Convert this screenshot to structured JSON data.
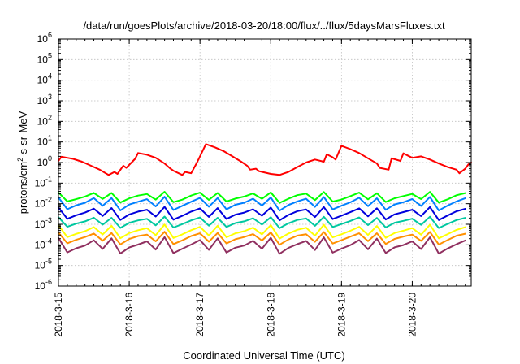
{
  "chart_data": {
    "type": "line",
    "title": "/data/run/goesPlots/archive/2018-03-20/18:00/flux/../flux/5daysMarsFluxes.txt",
    "xlabel": "Coordinated Universal Time (UTC)",
    "ylabel": {
      "prefix": "protons/cm",
      "sup": "2",
      "suffix": "-s-sr-MeV"
    },
    "y_scale": "log",
    "ylim": [
      1e-06,
      1000000.0
    ],
    "y_ticks": [
      {
        "value": 1e-06,
        "base": "10",
        "exp": "-6"
      },
      {
        "value": 1e-05,
        "base": "10",
        "exp": "-5"
      },
      {
        "value": 0.0001,
        "base": "10",
        "exp": "-4"
      },
      {
        "value": 0.001,
        "base": "10",
        "exp": "-3"
      },
      {
        "value": 0.01,
        "base": "10",
        "exp": "-2"
      },
      {
        "value": 0.1,
        "base": "10",
        "exp": "-1"
      },
      {
        "value": 1,
        "base": "10",
        "exp": "0"
      },
      {
        "value": 10,
        "base": "10",
        "exp": "1"
      },
      {
        "value": 100,
        "base": "10",
        "exp": "2"
      },
      {
        "value": 1000,
        "base": "10",
        "exp": "3"
      },
      {
        "value": 10000,
        "base": "10",
        "exp": "4"
      },
      {
        "value": 100000,
        "base": "10",
        "exp": "5"
      },
      {
        "value": 1000000,
        "base": "10",
        "exp": "6"
      }
    ],
    "xlim": [
      "2018-03-15T00:00",
      "2018-03-20T20:00"
    ],
    "x_ticks": [
      {
        "date": "2018-03-15T00:00",
        "label": "2018-3-15"
      },
      {
        "date": "2018-03-16T00:00",
        "label": "2018-3-16"
      },
      {
        "date": "2018-03-17T00:00",
        "label": "2018-3-17"
      },
      {
        "date": "2018-03-18T00:00",
        "label": "2018-3-18"
      },
      {
        "date": "2018-03-19T00:00",
        "label": "2018-3-19"
      },
      {
        "date": "2018-03-20T00:00",
        "label": "2018-3-20"
      }
    ],
    "grid": true,
    "legend": "none",
    "series": [
      {
        "color": "#ff0000",
        "x": [
          "2018-03-15T00:00",
          "2018-03-15T01:00",
          "2018-03-15T03:00",
          "2018-03-15T05:00",
          "2018-03-15T08:00",
          "2018-03-15T11:00",
          "2018-03-15T14:00",
          "2018-03-15T16:00",
          "2018-03-15T17:00",
          "2018-03-15T19:00",
          "2018-03-15T20:00",
          "2018-03-15T22:00",
          "2018-03-15T23:00",
          "2018-03-16T02:00",
          "2018-03-16T03:00",
          "2018-03-16T06:00",
          "2018-03-16T09:00",
          "2018-03-16T12:00",
          "2018-03-16T14:00",
          "2018-03-16T15:00",
          "2018-03-16T18:00",
          "2018-03-16T19:00",
          "2018-03-16T21:00",
          "2018-03-16T23:00",
          "2018-03-17T02:00",
          "2018-03-17T05:00",
          "2018-03-17T08:00",
          "2018-03-17T11:00",
          "2018-03-17T14:00",
          "2018-03-17T16:00",
          "2018-03-17T17:00",
          "2018-03-17T19:00",
          "2018-03-17T20:00",
          "2018-03-18T00:00",
          "2018-03-18T03:00",
          "2018-03-18T06:00",
          "2018-03-18T09:00",
          "2018-03-18T12:00",
          "2018-03-18T15:00",
          "2018-03-18T18:00",
          "2018-03-18T19:00",
          "2018-03-18T21:00",
          "2018-03-18T22:00",
          "2018-03-19T00:00",
          "2018-03-19T03:00",
          "2018-03-19T06:00",
          "2018-03-19T09:00",
          "2018-03-19T12:00",
          "2018-03-19T13:00",
          "2018-03-19T16:00",
          "2018-03-19T17:00",
          "2018-03-19T20:00",
          "2018-03-19T21:00",
          "2018-03-20T00:00",
          "2018-03-20T03:00",
          "2018-03-20T06:00",
          "2018-03-20T09:00",
          "2018-03-20T12:00",
          "2018-03-20T15:00",
          "2018-03-20T16:00",
          "2018-03-20T18:00",
          "2018-03-20T19:00",
          "2018-03-20T20:00"
        ],
        "y": [
          1.2,
          1.9,
          1.7,
          1.5,
          1.1,
          0.7,
          0.45,
          0.3,
          0.25,
          0.35,
          0.28,
          0.7,
          0.55,
          1.5,
          2.9,
          2.4,
          1.7,
          0.9,
          0.5,
          0.4,
          0.25,
          0.35,
          0.3,
          1.0,
          7.8,
          5.5,
          3.6,
          2.0,
          1.1,
          0.7,
          0.45,
          0.5,
          0.38,
          0.28,
          0.25,
          0.35,
          0.6,
          1.0,
          1.4,
          1.1,
          2.5,
          1.8,
          1.4,
          6.5,
          4.5,
          2.9,
          1.6,
          0.9,
          0.55,
          0.45,
          1.6,
          1.2,
          2.8,
          1.7,
          2.0,
          1.4,
          0.9,
          0.6,
          0.45,
          0.3,
          0.5,
          0.8,
          1.0
        ]
      },
      {
        "color": "#00ff00",
        "start": "2018-03-15T00:00",
        "step_hours": 3,
        "cycle": [
          0.035,
          0.012,
          0.017,
          0.024,
          0.032,
          0.016
        ],
        "count": 47
      },
      {
        "color": "#0080ff",
        "start": "2018-03-15T00:00",
        "step_hours": 3,
        "cycle": [
          0.02,
          0.005,
          0.0085,
          0.012,
          0.018,
          0.0075
        ],
        "count": 47
      },
      {
        "color": "#0000dd",
        "start": "2018-03-15T00:00",
        "step_hours": 3,
        "cycle": [
          0.0065,
          0.0017,
          0.0028,
          0.004,
          0.0055,
          0.0024
        ],
        "count": 47
      },
      {
        "color": "#00c8a0",
        "start": "2018-03-15T00:00",
        "step_hours": 3,
        "cycle": [
          0.0022,
          0.0007,
          0.0011,
          0.0015,
          0.002,
          0.0009
        ],
        "count": 47
      },
      {
        "color": "#ffff00",
        "start": "2018-03-15T00:00",
        "step_hours": 3,
        "cycle": [
          0.0009,
          0.00022,
          0.00035,
          0.0005,
          0.0007,
          0.0003
        ],
        "count": 47
      },
      {
        "color": "#ff9000",
        "start": "2018-03-15T00:00",
        "step_hours": 3,
        "cycle": [
          0.0004,
          0.00011,
          0.00018,
          0.00026,
          0.00034,
          0.00015
        ],
        "count": 47
      },
      {
        "color": "#903060",
        "start": "2018-03-15T00:00",
        "step_hours": 3,
        "cycle": [
          0.00022,
          4e-05,
          7e-05,
          0.0001,
          0.00016,
          6e-05
        ],
        "count": 47
      }
    ]
  }
}
